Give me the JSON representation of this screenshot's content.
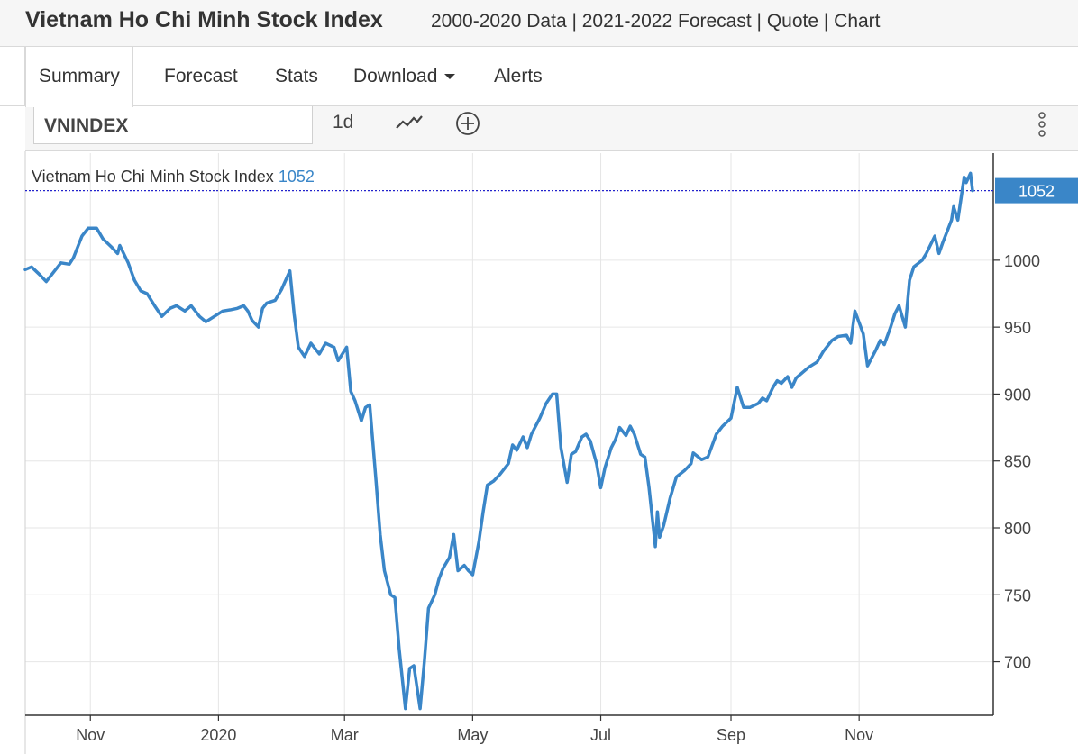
{
  "header": {
    "title": "Vietnam Ho Chi Minh Stock Index",
    "links": "2000-2020 Data | 2021-2022 Forecast | Quote | Chart"
  },
  "tabs": [
    {
      "label": "Summary",
      "active": true
    },
    {
      "label": "Forecast"
    },
    {
      "label": "Stats"
    },
    {
      "label": "Download",
      "dropdown": true
    },
    {
      "label": "Alerts"
    }
  ],
  "toolbar": {
    "symbol": "VNINDEX",
    "interval": "1d",
    "line_icon": "line-chart-icon",
    "add_icon": "plus-circle-icon",
    "more_icon": "vertical-dots-icon"
  },
  "legend": {
    "name": "Vietnam Ho Chi Minh Stock Index",
    "value": "1052"
  },
  "colors": {
    "line": "#3a86c8",
    "badge": "#3a86c8",
    "last_price_line": "#2222cc",
    "grid": "#e6e6e6"
  },
  "chart_data": {
    "type": "line",
    "series": [
      {
        "name": "Vietnam Ho Chi Minh Stock Index",
        "last_value": 1052,
        "points": [
          [
            "2019-10-01",
            993
          ],
          [
            "2019-10-04",
            995
          ],
          [
            "2019-10-08",
            989
          ],
          [
            "2019-10-11",
            984
          ],
          [
            "2019-10-15",
            992
          ],
          [
            "2019-10-18",
            998
          ],
          [
            "2019-10-22",
            997
          ],
          [
            "2019-10-24",
            1002
          ],
          [
            "2019-10-28",
            1018
          ],
          [
            "2019-10-31",
            1024
          ],
          [
            "2019-11-04",
            1024
          ],
          [
            "2019-11-07",
            1016
          ],
          [
            "2019-11-11",
            1010
          ],
          [
            "2019-11-14",
            1005
          ],
          [
            "2019-11-15",
            1011
          ],
          [
            "2019-11-19",
            998
          ],
          [
            "2019-11-22",
            985
          ],
          [
            "2019-11-25",
            977
          ],
          [
            "2019-11-28",
            975
          ],
          [
            "2019-12-02",
            965
          ],
          [
            "2019-12-05",
            958
          ],
          [
            "2019-12-09",
            964
          ],
          [
            "2019-12-12",
            966
          ],
          [
            "2019-12-16",
            962
          ],
          [
            "2019-12-19",
            966
          ],
          [
            "2019-12-23",
            958
          ],
          [
            "2019-12-26",
            954
          ],
          [
            "2019-12-30",
            958
          ],
          [
            "2020-01-03",
            962
          ],
          [
            "2020-01-07",
            963
          ],
          [
            "2020-01-10",
            964
          ],
          [
            "2020-01-13",
            966
          ],
          [
            "2020-01-15",
            962
          ],
          [
            "2020-01-17",
            955
          ],
          [
            "2020-01-20",
            950
          ],
          [
            "2020-01-22",
            964
          ],
          [
            "2020-01-24",
            968
          ],
          [
            "2020-01-28",
            970
          ],
          [
            "2020-01-31",
            978
          ],
          [
            "2020-02-04",
            992
          ],
          [
            "2020-02-06",
            960
          ],
          [
            "2020-02-08",
            935
          ],
          [
            "2020-02-11",
            928
          ],
          [
            "2020-02-14",
            938
          ],
          [
            "2020-02-18",
            930
          ],
          [
            "2020-02-21",
            938
          ],
          [
            "2020-02-25",
            935
          ],
          [
            "2020-02-27",
            925
          ],
          [
            "2020-03-02",
            935
          ],
          [
            "2020-03-04",
            902
          ],
          [
            "2020-03-06",
            895
          ],
          [
            "2020-03-09",
            880
          ],
          [
            "2020-03-11",
            890
          ],
          [
            "2020-03-13",
            892
          ],
          [
            "2020-03-16",
            835
          ],
          [
            "2020-03-18",
            795
          ],
          [
            "2020-03-20",
            768
          ],
          [
            "2020-03-23",
            750
          ],
          [
            "2020-03-25",
            748
          ],
          [
            "2020-03-27",
            710
          ],
          [
            "2020-03-30",
            665
          ],
          [
            "2020-04-01",
            695
          ],
          [
            "2020-04-03",
            697
          ],
          [
            "2020-04-06",
            665
          ],
          [
            "2020-04-08",
            700
          ],
          [
            "2020-04-10",
            740
          ],
          [
            "2020-04-13",
            750
          ],
          [
            "2020-04-15",
            762
          ],
          [
            "2020-04-17",
            770
          ],
          [
            "2020-04-20",
            778
          ],
          [
            "2020-04-22",
            795
          ],
          [
            "2020-04-24",
            768
          ],
          [
            "2020-04-27",
            772
          ],
          [
            "2020-04-29",
            768
          ],
          [
            "2020-05-01",
            765
          ],
          [
            "2020-05-04",
            790
          ],
          [
            "2020-05-06",
            812
          ],
          [
            "2020-05-08",
            832
          ],
          [
            "2020-05-11",
            835
          ],
          [
            "2020-05-14",
            840
          ],
          [
            "2020-05-18",
            848
          ],
          [
            "2020-05-20",
            862
          ],
          [
            "2020-05-22",
            858
          ],
          [
            "2020-05-25",
            868
          ],
          [
            "2020-05-27",
            860
          ],
          [
            "2020-05-29",
            870
          ],
          [
            "2020-06-02",
            882
          ],
          [
            "2020-06-05",
            893
          ],
          [
            "2020-06-08",
            900
          ],
          [
            "2020-06-10",
            900
          ],
          [
            "2020-06-11",
            880
          ],
          [
            "2020-06-12",
            860
          ],
          [
            "2020-06-15",
            834
          ],
          [
            "2020-06-17",
            855
          ],
          [
            "2020-06-19",
            857
          ],
          [
            "2020-06-22",
            868
          ],
          [
            "2020-06-24",
            870
          ],
          [
            "2020-06-26",
            865
          ],
          [
            "2020-06-29",
            848
          ],
          [
            "2020-07-01",
            830
          ],
          [
            "2020-07-03",
            845
          ],
          [
            "2020-07-06",
            860
          ],
          [
            "2020-07-08",
            866
          ],
          [
            "2020-07-10",
            875
          ],
          [
            "2020-07-13",
            869
          ],
          [
            "2020-07-15",
            876
          ],
          [
            "2020-07-17",
            870
          ],
          [
            "2020-07-20",
            855
          ],
          [
            "2020-07-22",
            853
          ],
          [
            "2020-07-24",
            830
          ],
          [
            "2020-07-27",
            786
          ],
          [
            "2020-07-28",
            812
          ],
          [
            "2020-07-29",
            793
          ],
          [
            "2020-07-31",
            802
          ],
          [
            "2020-08-03",
            822
          ],
          [
            "2020-08-06",
            838
          ],
          [
            "2020-08-10",
            843
          ],
          [
            "2020-08-13",
            848
          ],
          [
            "2020-08-14",
            856
          ],
          [
            "2020-08-18",
            851
          ],
          [
            "2020-08-21",
            853
          ],
          [
            "2020-08-25",
            870
          ],
          [
            "2020-08-28",
            876
          ],
          [
            "2020-09-01",
            882
          ],
          [
            "2020-09-04",
            905
          ],
          [
            "2020-09-07",
            890
          ],
          [
            "2020-09-10",
            890
          ],
          [
            "2020-09-14",
            893
          ],
          [
            "2020-09-16",
            897
          ],
          [
            "2020-09-18",
            895
          ],
          [
            "2020-09-21",
            905
          ],
          [
            "2020-09-23",
            910
          ],
          [
            "2020-09-25",
            908
          ],
          [
            "2020-09-28",
            913
          ],
          [
            "2020-09-30",
            905
          ],
          [
            "2020-10-02",
            912
          ],
          [
            "2020-10-05",
            916
          ],
          [
            "2020-10-08",
            920
          ],
          [
            "2020-10-12",
            924
          ],
          [
            "2020-10-15",
            932
          ],
          [
            "2020-10-19",
            940
          ],
          [
            "2020-10-22",
            943
          ],
          [
            "2020-10-26",
            944
          ],
          [
            "2020-10-28",
            938
          ],
          [
            "2020-10-30",
            962
          ],
          [
            "2020-11-03",
            945
          ],
          [
            "2020-11-05",
            921
          ],
          [
            "2020-11-09",
            933
          ],
          [
            "2020-11-11",
            940
          ],
          [
            "2020-11-13",
            937
          ],
          [
            "2020-11-16",
            950
          ],
          [
            "2020-11-18",
            960
          ],
          [
            "2020-11-20",
            966
          ],
          [
            "2020-11-23",
            950
          ],
          [
            "2020-11-25",
            985
          ],
          [
            "2020-11-27",
            995
          ],
          [
            "2020-12-01",
            1000
          ],
          [
            "2020-12-03",
            1005
          ],
          [
            "2020-12-07",
            1018
          ],
          [
            "2020-12-09",
            1005
          ],
          [
            "2020-12-11",
            1014
          ],
          [
            "2020-12-15",
            1030
          ],
          [
            "2020-12-16",
            1040
          ],
          [
            "2020-12-18",
            1030
          ],
          [
            "2020-12-21",
            1062
          ],
          [
            "2020-12-22",
            1058
          ],
          [
            "2020-12-24",
            1065
          ],
          [
            "2020-12-25",
            1052
          ]
        ]
      }
    ],
    "ylim": [
      660,
      1080
    ],
    "y_ticks": [
      700,
      750,
      800,
      850,
      900,
      950,
      1000
    ],
    "x_tick_labels": [
      {
        "label": "Nov",
        "date": "2019-11-01"
      },
      {
        "label": "2020",
        "date": "2020-01-01"
      },
      {
        "label": "Mar",
        "date": "2020-03-01"
      },
      {
        "label": "May",
        "date": "2020-05-01"
      },
      {
        "label": "Jul",
        "date": "2020-07-01"
      },
      {
        "label": "Sep",
        "date": "2020-09-01"
      },
      {
        "label": "Nov",
        "date": "2020-11-01"
      }
    ],
    "x_start": "2019-10-01",
    "x_end": "2020-12-28",
    "y_axis_position": "right",
    "grid": true,
    "last_price_badge": "1052"
  }
}
